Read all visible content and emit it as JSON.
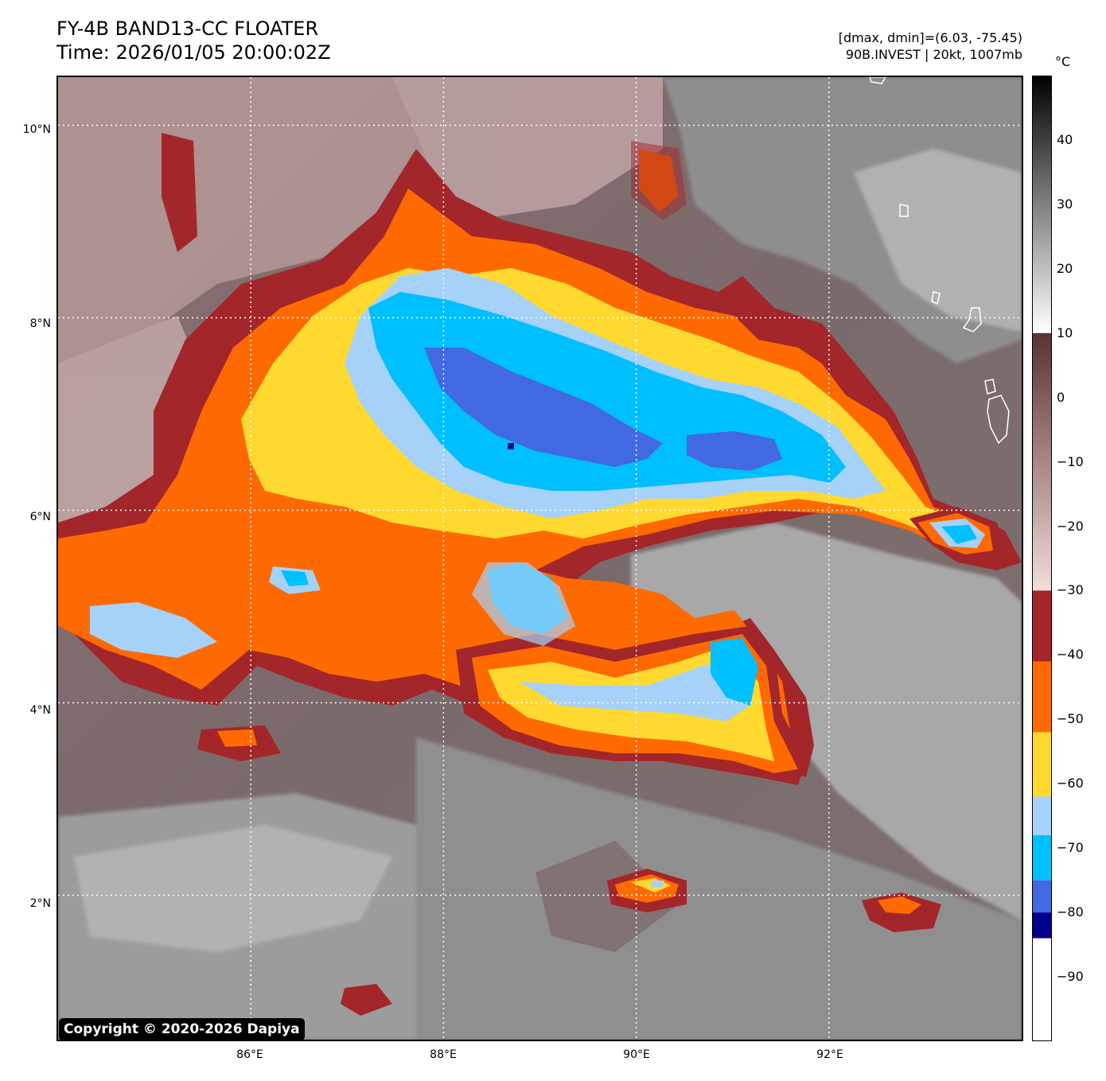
{
  "header": {
    "title_line1": "FY-4B BAND13-CC FLOATER",
    "title_line2": "Time: 2026/01/05 20:00:02Z",
    "info_line1": "[dmax, dmin]=(6.03, -75.45)",
    "info_line2": "90B.INVEST | 20kt, 1007mb"
  },
  "map": {
    "lat_labels": [
      "10°N",
      "8°N",
      "6°N",
      "4°N",
      "2°N"
    ],
    "lon_labels": [
      "86°E",
      "88°E",
      "90°E",
      "92°E"
    ],
    "lat_values": [
      10,
      8,
      6,
      4,
      2
    ],
    "lon_values": [
      86,
      88,
      90,
      92
    ],
    "extent": {
      "lon_min": 84.0,
      "lon_max": 94.0,
      "lat_min": 0.5,
      "lat_max": 10.5
    },
    "gridlines": true
  },
  "colorbar": {
    "unit": "°C",
    "ticks": [
      "40",
      "30",
      "20",
      "10",
      "0",
      "−10",
      "−20",
      "−30",
      "−40",
      "−50",
      "−60",
      "−70",
      "−80",
      "−90"
    ],
    "tick_values": [
      40,
      30,
      20,
      10,
      0,
      -10,
      -20,
      -30,
      -40,
      -50,
      -60,
      -70,
      -80,
      -90
    ],
    "range": [
      -100,
      50
    ],
    "color_bands": [
      {
        "from": 50,
        "to": 10,
        "colors": [
          "#000000",
          "#ffffff"
        ]
      },
      {
        "from": 10,
        "to": -30,
        "colors": [
          "#5a3232",
          "#f3dcdc"
        ]
      },
      {
        "from": -30,
        "to": -41,
        "color": "#a3262a"
      },
      {
        "from": -41,
        "to": -52,
        "color": "#ff6a00"
      },
      {
        "from": -52,
        "to": -62,
        "color": "#ffd92f"
      },
      {
        "from": -62,
        "to": -68,
        "color": "#a6d1f8"
      },
      {
        "from": -68,
        "to": -75,
        "color": "#00bfff"
      },
      {
        "from": -75,
        "to": -80,
        "color": "#4169e1"
      },
      {
        "from": -80,
        "to": -84,
        "color": "#00008b"
      },
      {
        "from": -84,
        "to": -100,
        "color": "#ffffff"
      }
    ]
  },
  "footer": {
    "copyright": "Copyright © 2020-2026 Dapiya"
  }
}
